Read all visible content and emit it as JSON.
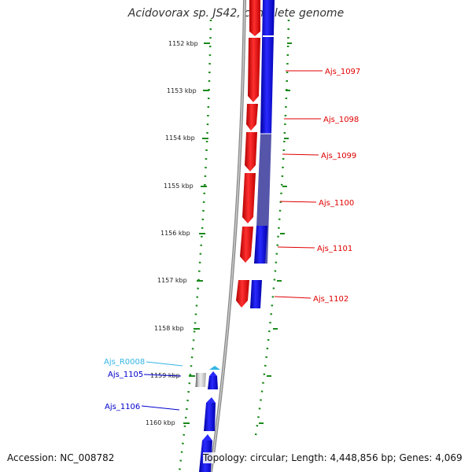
{
  "title": "Acidovorax sp. JS42, complete genome",
  "accession": "Accession: NC_008782",
  "topology": "Topology: circular; Length: 4,448,856 bp; Genes: 4,069",
  "ticks": [
    "1152 kbp",
    "1153 kbp",
    "1154 kbp",
    "1155 kbp",
    "1156 kbp",
    "1157 kbp",
    "1158 kbp",
    "1159 kbp",
    "1160 kbp"
  ],
  "gene_labels": [
    {
      "text": "Ajs_1097",
      "color": "#e00000"
    },
    {
      "text": "Ajs_1098",
      "color": "#e00000"
    },
    {
      "text": "Ajs_1099",
      "color": "#e00000"
    },
    {
      "text": "Ajs_1100",
      "color": "#e00000"
    },
    {
      "text": "Ajs_1101",
      "color": "#e00000"
    },
    {
      "text": "Ajs_1102",
      "color": "#e00000"
    },
    {
      "text": "Ajs_R0008",
      "color": "#33b5e5"
    },
    {
      "text": "Ajs_1105",
      "color": "#0000cc"
    },
    {
      "text": "Ajs_1106",
      "color": "#0000cc"
    }
  ],
  "colors": {
    "forward": "#ff0000",
    "reverse": "#0000ff",
    "rna": "#33b5e5",
    "gc_line": "#888888",
    "grid_dots": "#1a8a1a"
  }
}
